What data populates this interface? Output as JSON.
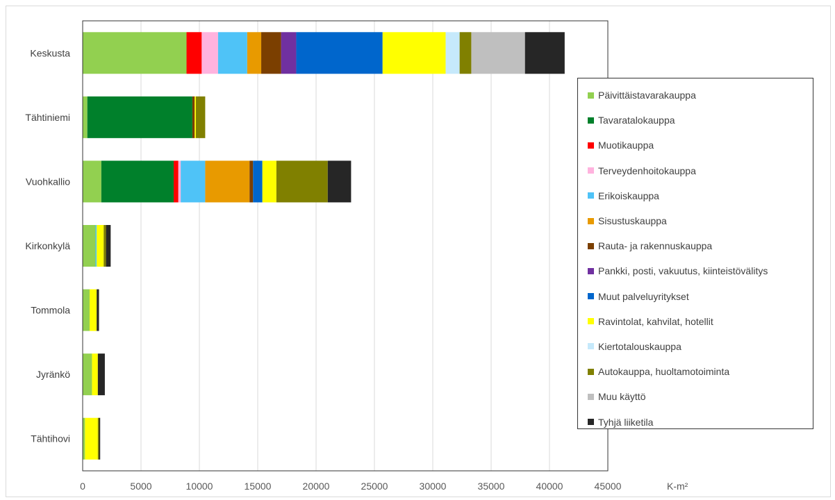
{
  "chart_data": {
    "type": "bar",
    "orientation": "horizontal",
    "stacked": true,
    "categories": [
      "Keskusta",
      "Tähtiniemi",
      "Vuohkallio",
      "Kirkonkylä",
      "Tommola",
      "Jyränkö",
      "Tähtihovi"
    ],
    "series": [
      {
        "name": "Päivittäistavarakauppa",
        "color": "#92d050",
        "values": [
          8900,
          400,
          1600,
          1100,
          600,
          800,
          200
        ]
      },
      {
        "name": "Tavaratalokauppa",
        "color": "#00802b",
        "values": [
          0,
          9000,
          6200,
          0,
          0,
          0,
          0
        ]
      },
      {
        "name": "Muotikauppa",
        "color": "#ff0000",
        "values": [
          1300,
          0,
          400,
          0,
          0,
          0,
          0
        ]
      },
      {
        "name": "Terveydenhoitokauppa",
        "color": "#ffb3de",
        "values": [
          1400,
          0,
          200,
          0,
          0,
          0,
          0
        ]
      },
      {
        "name": "Erikoiskauppa",
        "color": "#4fc3f7",
        "values": [
          2500,
          0,
          2100,
          100,
          0,
          0,
          0
        ]
      },
      {
        "name": "Sisustuskauppa",
        "color": "#e89a00",
        "values": [
          1200,
          0,
          3800,
          0,
          0,
          0,
          0
        ]
      },
      {
        "name": "Rauta- ja rakennuskauppa",
        "color": "#7b3f00",
        "values": [
          1700,
          200,
          300,
          0,
          0,
          0,
          0
        ]
      },
      {
        "name": "Pankki, posti, vakuutus, kiinteistövälitys",
        "color": "#7030a0",
        "values": [
          1300,
          0,
          0,
          0,
          0,
          0,
          0
        ]
      },
      {
        "name": "Muut palveluyritykset",
        "color": "#0066cc",
        "values": [
          7400,
          0,
          800,
          0,
          0,
          0,
          0
        ]
      },
      {
        "name": "Ravintolat, kahvilat, hotellit",
        "color": "#ffff00",
        "values": [
          5400,
          100,
          1200,
          600,
          600,
          500,
          1100
        ]
      },
      {
        "name": "Kiertotalouskauppa",
        "color": "#c6e9fb",
        "values": [
          1200,
          0,
          0,
          0,
          0,
          0,
          0
        ]
      },
      {
        "name": "Autokauppa, huoltamotoiminta",
        "color": "#808000",
        "values": [
          1000,
          800,
          4400,
          200,
          0,
          0,
          100
        ]
      },
      {
        "name": "Muu käyttö",
        "color": "#bfbfbf",
        "values": [
          4600,
          0,
          0,
          0,
          0,
          0,
          0
        ]
      },
      {
        "name": "Tyhjä liiketila",
        "color": "#262626",
        "values": [
          3400,
          0,
          2000,
          400,
          200,
          600,
          100
        ]
      }
    ],
    "xlim": [
      0,
      45000
    ],
    "xticks": [
      "0",
      "5000",
      "10000",
      "15000",
      "20000",
      "25000",
      "30000",
      "35000",
      "40000",
      "45000"
    ],
    "xlabel": "K-m²",
    "grid": "vertical",
    "legend_position": "right"
  }
}
